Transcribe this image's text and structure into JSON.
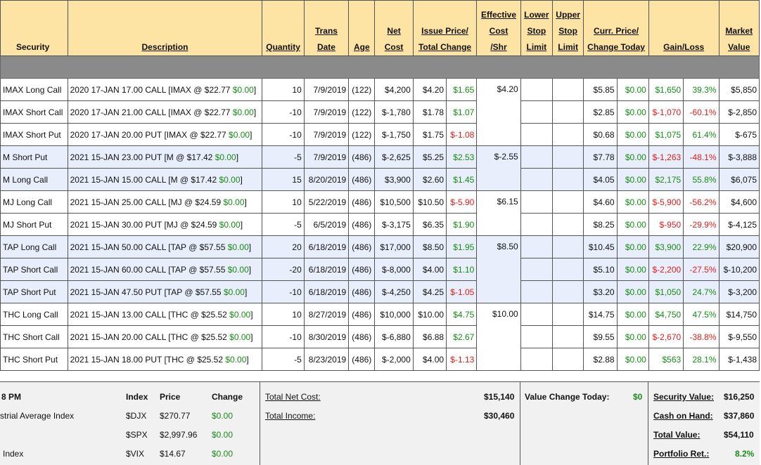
{
  "header": {
    "security": "Security",
    "description": "Description",
    "quantity": "Quantity",
    "trans_date": [
      "Trans",
      "Date"
    ],
    "age": "Age",
    "net_cost": [
      "Net",
      "Cost"
    ],
    "issue_price": [
      "Issue Price/",
      "Total Change"
    ],
    "effective_cost": [
      "Effective",
      "Cost",
      "/Shr"
    ],
    "lower_stop": [
      "Lower",
      "Stop",
      "Limit"
    ],
    "upper_stop": [
      "Upper",
      "Stop",
      "Limit"
    ],
    "curr_price": [
      "Curr. Price/",
      "Change Today"
    ],
    "gain_loss": "Gain/Loss",
    "market_value": [
      "Market",
      "Value"
    ]
  },
  "rows": [
    {
      "security": "IMAX Long Call",
      "desc_main": "2020 17-JAN 17.00 CALL [IMAX @ $22.77",
      "desc_chg": "$0.00",
      "qty": "10",
      "date": "7/9/2019",
      "age": "(122)",
      "net": "$4,200",
      "issue": "$4.20",
      "tchg": "$1.65",
      "tchg_neg": false,
      "eff": "$4.20",
      "curr": "$5.85",
      "ctoday": "$0.00",
      "gl": "$1,650",
      "glp": "39.3%",
      "gl_neg": false,
      "mv": "$5,850",
      "alt": false
    },
    {
      "security": "IMAX Short Call",
      "desc_main": "2020 17-JAN 21.00 CALL [IMAX @ $22.77",
      "desc_chg": "$0.00",
      "qty": "-10",
      "date": "7/9/2019",
      "age": "(122)",
      "net": "$-1,780",
      "issue": "$1.78",
      "tchg": "$1.07",
      "tchg_neg": false,
      "eff": "",
      "curr": "$2.85",
      "ctoday": "$0.00",
      "gl": "$-1,070",
      "glp": "-60.1%",
      "gl_neg": true,
      "mv": "$-2,850",
      "alt": false
    },
    {
      "security": "IMAX Short Put",
      "desc_main": "2020 17-JAN 20.00 PUT [IMAX @ $22.77",
      "desc_chg": "$0.00",
      "qty": "-10",
      "date": "7/9/2019",
      "age": "(122)",
      "net": "$-1,750",
      "issue": "$1.75",
      "tchg": "$-1.08",
      "tchg_neg": true,
      "eff": "",
      "curr": "$0.68",
      "ctoday": "$0.00",
      "gl": "$1,075",
      "glp": "61.4%",
      "gl_neg": false,
      "mv": "$-675",
      "alt": false
    },
    {
      "security": "M Short Put",
      "desc_main": "2021 15-JAN 23.00 PUT [M @ $17.42",
      "desc_chg": "$0.00",
      "qty": "-5",
      "date": "7/9/2019",
      "age": "(486)",
      "net": "$-2,625",
      "issue": "$5.25",
      "tchg": "$2.53",
      "tchg_neg": false,
      "eff": "$-2.55",
      "curr": "$7.78",
      "ctoday": "$0.00",
      "gl": "$-1,263",
      "glp": "-48.1%",
      "gl_neg": true,
      "mv": "$-3,888",
      "alt": true
    },
    {
      "security": "M Long Call",
      "desc_main": "2021 15-JAN 15.00 CALL [M @ $17.42",
      "desc_chg": "$0.00",
      "qty": "15",
      "date": "8/20/2019",
      "age": "(486)",
      "net": "$3,900",
      "issue": "$2.60",
      "tchg": "$1.45",
      "tchg_neg": false,
      "eff": "",
      "curr": "$4.05",
      "ctoday": "$0.00",
      "gl": "$2,175",
      "glp": "55.8%",
      "gl_neg": false,
      "mv": "$6,075",
      "alt": true
    },
    {
      "security": "MJ Long Call",
      "desc_main": "2021 15-JAN 25.00 CALL [MJ @ $24.59",
      "desc_chg": "$0.00",
      "qty": "10",
      "date": "5/22/2019",
      "age": "(486)",
      "net": "$10,500",
      "issue": "$10.50",
      "tchg": "$-5.90",
      "tchg_neg": true,
      "eff": "$6.15",
      "curr": "$4.60",
      "ctoday": "$0.00",
      "gl": "$-5,900",
      "glp": "-56.2%",
      "gl_neg": true,
      "mv": "$4,600",
      "alt": false
    },
    {
      "security": "MJ Short Put",
      "desc_main": "2021 15-JAN 30.00 PUT [MJ @ $24.59",
      "desc_chg": "$0.00",
      "qty": "-5",
      "date": "6/5/2019",
      "age": "(486)",
      "net": "$-3,175",
      "issue": "$6.35",
      "tchg": "$1.90",
      "tchg_neg": false,
      "eff": "",
      "curr": "$8.25",
      "ctoday": "$0.00",
      "gl": "$-950",
      "glp": "-29.9%",
      "gl_neg": true,
      "mv": "$-4,125",
      "alt": false
    },
    {
      "security": "TAP Long Call",
      "desc_main": "2021 15-JAN 50.00 CALL [TAP @ $57.55",
      "desc_chg": "$0.00",
      "qty": "20",
      "date": "6/18/2019",
      "age": "(486)",
      "net": "$17,000",
      "issue": "$8.50",
      "tchg": "$1.95",
      "tchg_neg": false,
      "eff": "$8.50",
      "curr": "$10.45",
      "ctoday": "$0.00",
      "gl": "$3,900",
      "glp": "22.9%",
      "gl_neg": false,
      "mv": "$20,900",
      "alt": true
    },
    {
      "security": "TAP Short Call",
      "desc_main": "2021 15-JAN 60.00 CALL [TAP @ $57.55",
      "desc_chg": "$0.00",
      "qty": "-20",
      "date": "6/18/2019",
      "age": "(486)",
      "net": "$-8,000",
      "issue": "$4.00",
      "tchg": "$1.10",
      "tchg_neg": false,
      "eff": "",
      "curr": "$5.10",
      "ctoday": "$0.00",
      "gl": "$-2,200",
      "glp": "-27.5%",
      "gl_neg": true,
      "mv": "$-10,200",
      "alt": true
    },
    {
      "security": "TAP Short Put",
      "desc_main": "2021 15-JAN 47.50 PUT [TAP @ $57.55",
      "desc_chg": "$0.00",
      "qty": "-10",
      "date": "6/18/2019",
      "age": "(486)",
      "net": "$-4,250",
      "issue": "$4.25",
      "tchg": "$-1.05",
      "tchg_neg": true,
      "eff": "",
      "curr": "$3.20",
      "ctoday": "$0.00",
      "gl": "$1,050",
      "glp": "24.7%",
      "gl_neg": false,
      "mv": "$-3,200",
      "alt": true
    },
    {
      "security": "THC Long Call",
      "desc_main": "2021 15-JAN 13.00 CALL [THC @ $25.52",
      "desc_chg": "$0.00",
      "qty": "10",
      "date": "8/27/2019",
      "age": "(486)",
      "net": "$10,000",
      "issue": "$10.00",
      "tchg": "$4.75",
      "tchg_neg": false,
      "eff": "$10.00",
      "curr": "$14.75",
      "ctoday": "$0.00",
      "gl": "$4,750",
      "glp": "47.5%",
      "gl_neg": false,
      "mv": "$14,750",
      "alt": false
    },
    {
      "security": "THC Short Call",
      "desc_main": "2021 15-JAN 20.00 CALL [THC @ $25.52",
      "desc_chg": "$0.00",
      "qty": "-10",
      "date": "8/30/2019",
      "age": "(486)",
      "net": "$-6,880",
      "issue": "$6.88",
      "tchg": "$2.67",
      "tchg_neg": false,
      "eff": "",
      "curr": "$9.55",
      "ctoday": "$0.00",
      "gl": "$-2,670",
      "glp": "-38.8%",
      "gl_neg": true,
      "mv": "$-9,550",
      "alt": false
    },
    {
      "security": "THC Short Put",
      "desc_main": "2021 15-JAN 18.00 PUT [THC @ $25.52",
      "desc_chg": "$0.00",
      "qty": "-5",
      "date": "8/23/2019",
      "age": "(486)",
      "net": "$-2,000",
      "issue": "$4.00",
      "tchg": "$-1.13",
      "tchg_neg": true,
      "eff": "",
      "curr": "$2.88",
      "ctoday": "$0.00",
      "gl": "$563",
      "glp": "28.1%",
      "gl_neg": false,
      "mv": "$-1,438",
      "alt": false
    }
  ],
  "summary": {
    "time_fragment": "8 PM",
    "index_header": "Index",
    "price_header": "Price",
    "change_header": "Change",
    "indexes": [
      {
        "name": "strial Average Index",
        "symbol": "$DJX",
        "price": "$270.77",
        "change": "$0.00"
      },
      {
        "name": "",
        "symbol": "$SPX",
        "price": "$2,997.96",
        "change": "$0.00"
      },
      {
        "name": "Index",
        "symbol": "$VIX",
        "price": "$14.67",
        "change": "$0.00"
      }
    ],
    "total_net_cost_label": "Total Net Cost:",
    "total_net_cost": "$15,140",
    "total_income_label": "Total Income:",
    "total_income": "$30,460",
    "value_change_label": "Value Change Today:",
    "value_change": "$0",
    "security_value_label": "Security Value:",
    "security_value": "$16,250",
    "cash_label": "Cash on Hand:",
    "cash": "$37,860",
    "total_value_label": "Total Value:",
    "total_value": "$54,110",
    "portfolio_ret_label": "Portfolio Ret.:",
    "portfolio_ret": "8.2%"
  },
  "colors": {
    "header_bg": "#fde3a4",
    "band_bg": "#8a8a8a",
    "alt_row_bg": "#e8eefb",
    "positive": "#1a8a1a",
    "negative": "#e02020"
  }
}
